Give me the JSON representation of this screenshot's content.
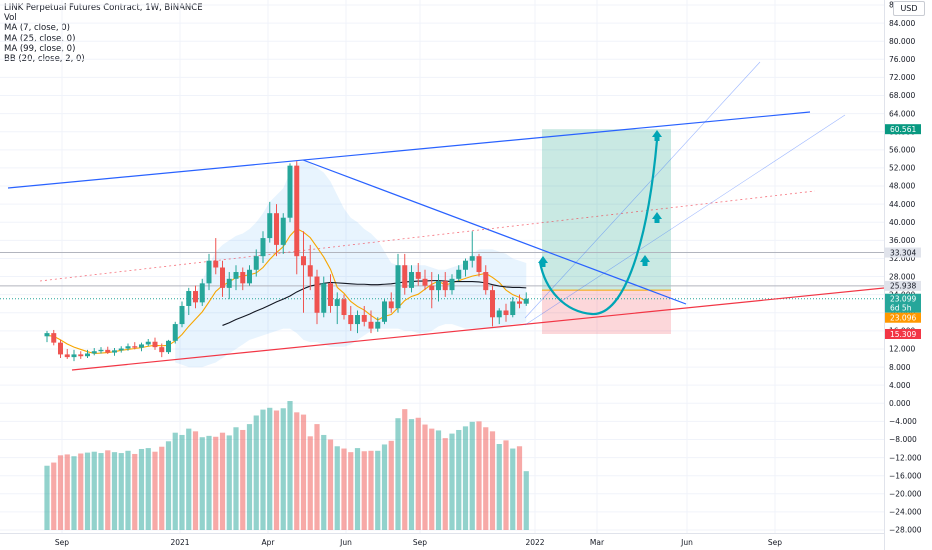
{
  "legend": {
    "title": "LINK Perpetual Futures Contract, 1W, BINANCE",
    "vol": "Vol",
    "ma7": "MA (7, close, 0)",
    "ma25": "MA (25, close, 0)",
    "ma99": "MA (99, close, 0)",
    "bb": "BB (20, close, 2, 0)"
  },
  "currency_button": "USD",
  "chart_data": {
    "type": "candlestick",
    "title": "LINK Perpetual Futures Contract, 1W, BINANCE",
    "price_axis_ticks": [
      "88.000",
      "84.000",
      "80.000",
      "76.000",
      "72.000",
      "68.000",
      "64.000",
      "60.000",
      "56.000",
      "52.000",
      "48.000",
      "44.000",
      "40.000",
      "36.000",
      "32.000",
      "28.000",
      "24.000",
      "20.000",
      "16.000",
      "12.000",
      "8.000",
      "4.000",
      "0.000",
      "−4.000",
      "−8.000",
      "−12.000",
      "−16.000",
      "−20.000",
      "−24.000",
      "−28.000"
    ],
    "time_axis_ticks": [
      "Sep",
      "2021",
      "Apr",
      "Jun",
      "Sep",
      "2022",
      "Mar",
      "Jun",
      "Sep"
    ],
    "price_labels": [
      {
        "text": "60.561",
        "color": "#089981",
        "text_color": "#ffffff"
      },
      {
        "text": "33.304",
        "color": "#e0e3eb",
        "text_color": "#131722"
      },
      {
        "text": "25.938",
        "color": "#e0e3eb",
        "text_color": "#131722"
      },
      {
        "text": "23.099",
        "color": "#26a69a",
        "text_color": "#ffffff"
      },
      {
        "text": "6d 5h",
        "color": "#26a69a",
        "text_color": "#ffffff"
      },
      {
        "text": "23.096",
        "color": "#ff9800",
        "text_color": "#ffffff"
      },
      {
        "text": "15.309",
        "color": "#f23645",
        "text_color": "#ffffff"
      }
    ],
    "candles": [
      {
        "o": 14.8,
        "h": 16.0,
        "l": 13.5,
        "c": 15.5
      },
      {
        "o": 15.5,
        "h": 16.2,
        "l": 12.8,
        "c": 13.4
      },
      {
        "o": 13.4,
        "h": 14.0,
        "l": 10.0,
        "c": 10.8
      },
      {
        "o": 10.8,
        "h": 12.0,
        "l": 9.8,
        "c": 10.2
      },
      {
        "o": 10.2,
        "h": 11.8,
        "l": 9.3,
        "c": 10.8
      },
      {
        "o": 10.8,
        "h": 11.5,
        "l": 9.8,
        "c": 10.4
      },
      {
        "o": 10.4,
        "h": 11.8,
        "l": 10.0,
        "c": 11.0
      },
      {
        "o": 11.0,
        "h": 12.2,
        "l": 10.6,
        "c": 11.5
      },
      {
        "o": 11.5,
        "h": 12.4,
        "l": 11.0,
        "c": 11.8
      },
      {
        "o": 11.8,
        "h": 12.5,
        "l": 10.9,
        "c": 11.2
      },
      {
        "o": 11.2,
        "h": 12.2,
        "l": 10.5,
        "c": 11.7
      },
      {
        "o": 11.7,
        "h": 12.6,
        "l": 11.2,
        "c": 12.1
      },
      {
        "o": 12.1,
        "h": 13.2,
        "l": 11.6,
        "c": 12.6
      },
      {
        "o": 12.6,
        "h": 13.5,
        "l": 11.9,
        "c": 12.3
      },
      {
        "o": 12.3,
        "h": 13.4,
        "l": 11.5,
        "c": 13.0
      },
      {
        "o": 13.0,
        "h": 14.2,
        "l": 12.6,
        "c": 13.6
      },
      {
        "o": 13.6,
        "h": 14.5,
        "l": 11.8,
        "c": 12.4
      },
      {
        "o": 12.4,
        "h": 13.2,
        "l": 10.2,
        "c": 11.3
      },
      {
        "o": 11.3,
        "h": 14.0,
        "l": 10.9,
        "c": 13.8
      },
      {
        "o": 13.8,
        "h": 18.0,
        "l": 13.2,
        "c": 17.5
      },
      {
        "o": 17.5,
        "h": 22.5,
        "l": 16.8,
        "c": 21.5
      },
      {
        "o": 21.5,
        "h": 25.5,
        "l": 19.5,
        "c": 24.8
      },
      {
        "o": 24.8,
        "h": 26.0,
        "l": 21.0,
        "c": 22.3
      },
      {
        "o": 22.3,
        "h": 27.5,
        "l": 21.5,
        "c": 26.5
      },
      {
        "o": 26.5,
        "h": 33.0,
        "l": 25.0,
        "c": 31.5
      },
      {
        "o": 31.5,
        "h": 36.5,
        "l": 28.5,
        "c": 30.0
      },
      {
        "o": 30.0,
        "h": 31.5,
        "l": 23.5,
        "c": 25.5
      },
      {
        "o": 25.5,
        "h": 29.0,
        "l": 23.0,
        "c": 27.5
      },
      {
        "o": 27.5,
        "h": 30.5,
        "l": 25.0,
        "c": 29.0
      },
      {
        "o": 29.0,
        "h": 30.0,
        "l": 25.0,
        "c": 26.5
      },
      {
        "o": 26.5,
        "h": 30.5,
        "l": 26.0,
        "c": 29.5
      },
      {
        "o": 29.5,
        "h": 34.0,
        "l": 28.0,
        "c": 32.5
      },
      {
        "o": 32.5,
        "h": 38.0,
        "l": 31.0,
        "c": 36.5
      },
      {
        "o": 36.5,
        "h": 44.5,
        "l": 35.5,
        "c": 42.0
      },
      {
        "o": 42.0,
        "h": 44.0,
        "l": 32.5,
        "c": 35.0
      },
      {
        "o": 35.0,
        "h": 42.0,
        "l": 33.0,
        "c": 41.0
      },
      {
        "o": 41.0,
        "h": 53.0,
        "l": 40.0,
        "c": 52.5
      },
      {
        "o": 52.5,
        "h": 53.5,
        "l": 28.5,
        "c": 32.5
      },
      {
        "o": 32.5,
        "h": 38.0,
        "l": 20.0,
        "c": 30.5
      },
      {
        "o": 30.5,
        "h": 35.0,
        "l": 25.0,
        "c": 28.0
      },
      {
        "o": 28.0,
        "h": 29.5,
        "l": 17.5,
        "c": 20.0
      },
      {
        "o": 20.0,
        "h": 28.0,
        "l": 19.0,
        "c": 26.5
      },
      {
        "o": 26.5,
        "h": 28.5,
        "l": 20.0,
        "c": 21.5
      },
      {
        "o": 21.5,
        "h": 24.5,
        "l": 17.5,
        "c": 23.0
      },
      {
        "o": 23.0,
        "h": 24.0,
        "l": 18.5,
        "c": 19.5
      },
      {
        "o": 19.5,
        "h": 21.5,
        "l": 16.0,
        "c": 17.5
      },
      {
        "o": 17.5,
        "h": 20.5,
        "l": 15.5,
        "c": 19.5
      },
      {
        "o": 19.5,
        "h": 21.5,
        "l": 17.0,
        "c": 18.0
      },
      {
        "o": 18.0,
        "h": 20.5,
        "l": 15.5,
        "c": 16.5
      },
      {
        "o": 16.5,
        "h": 19.0,
        "l": 15.8,
        "c": 18.0
      },
      {
        "o": 18.0,
        "h": 23.0,
        "l": 17.5,
        "c": 22.5
      },
      {
        "o": 22.5,
        "h": 24.5,
        "l": 20.0,
        "c": 21.0
      },
      {
        "o": 21.0,
        "h": 33.0,
        "l": 20.0,
        "c": 30.5
      },
      {
        "o": 30.5,
        "h": 33.0,
        "l": 24.0,
        "c": 25.5
      },
      {
        "o": 25.5,
        "h": 30.5,
        "l": 24.5,
        "c": 29.0
      },
      {
        "o": 29.0,
        "h": 31.0,
        "l": 26.0,
        "c": 27.5
      },
      {
        "o": 27.5,
        "h": 29.5,
        "l": 25.0,
        "c": 26.0
      },
      {
        "o": 26.0,
        "h": 29.0,
        "l": 21.0,
        "c": 25.0
      },
      {
        "o": 25.0,
        "h": 28.5,
        "l": 22.5,
        "c": 27.0
      },
      {
        "o": 27.0,
        "h": 29.0,
        "l": 23.5,
        "c": 25.0
      },
      {
        "o": 25.0,
        "h": 28.5,
        "l": 24.0,
        "c": 27.5
      },
      {
        "o": 27.5,
        "h": 30.5,
        "l": 27.0,
        "c": 29.5
      },
      {
        "o": 29.5,
        "h": 32.0,
        "l": 28.0,
        "c": 31.5
      },
      {
        "o": 31.5,
        "h": 38.0,
        "l": 30.0,
        "c": 32.5
      },
      {
        "o": 32.5,
        "h": 33.0,
        "l": 28.0,
        "c": 29.0
      },
      {
        "o": 29.0,
        "h": 30.5,
        "l": 24.0,
        "c": 25.0
      },
      {
        "o": 25.0,
        "h": 26.0,
        "l": 17.0,
        "c": 19.0
      },
      {
        "o": 19.0,
        "h": 21.0,
        "l": 17.5,
        "c": 20.5
      },
      {
        "o": 20.5,
        "h": 22.0,
        "l": 18.0,
        "c": 19.5
      },
      {
        "o": 19.5,
        "h": 23.5,
        "l": 19.0,
        "c": 22.5
      },
      {
        "o": 22.5,
        "h": 24.0,
        "l": 21.0,
        "c": 22.0
      },
      {
        "o": 22.0,
        "h": 24.5,
        "l": 21.5,
        "c": 23.1
      }
    ],
    "volume": [
      14.2,
      14.9,
      16.5,
      16.7,
      16.3,
      16.9,
      17.1,
      17.3,
      17.0,
      17.6,
      17.2,
      17.0,
      17.5,
      16.8,
      17.9,
      18.1,
      17.3,
      18.4,
      19.6,
      21.5,
      21.0,
      22.4,
      21.8,
      20.5,
      20.8,
      20.6,
      21.5,
      20.9,
      22.7,
      22.1,
      23.4,
      25.3,
      26.6,
      27.0,
      26.4,
      26.9,
      28.5,
      26.0,
      25.5,
      20.7,
      23.4,
      21.0,
      20.0,
      18.5,
      18.0,
      17.2,
      18.1,
      17.4,
      17.5,
      17.5,
      18.9,
      19.7,
      24.7,
      26.7,
      24.5,
      24.8,
      23.3,
      22.4,
      22.0,
      20.3,
      21.3,
      22.1,
      22.9,
      23.9,
      24.0,
      22.7,
      21.8,
      19.0,
      19.8,
      18.0,
      18.5,
      13.0
    ],
    "ma7": [
      15.0,
      14.8,
      14.0,
      13.1,
      12.4,
      11.9,
      11.4,
      11.0,
      11.1,
      11.2,
      11.4,
      11.7,
      11.9,
      12.1,
      12.3,
      12.6,
      12.8,
      12.7,
      12.8,
      13.8,
      15.2,
      17.0,
      18.6,
      20.2,
      22.4,
      24.7,
      26.0,
      26.8,
      27.8,
      28.1,
      28.4,
      28.8,
      30.0,
      31.8,
      33.3,
      34.6,
      37.0,
      38.6,
      37.8,
      36.6,
      34.5,
      32.3,
      29.6,
      25.6,
      24.3,
      22.5,
      21.4,
      20.6,
      19.4,
      18.4,
      19.2,
      19.6,
      21.1,
      22.7,
      23.6,
      24.1,
      25.2,
      26.3,
      27.0,
      26.1,
      26.6,
      27.1,
      27.6,
      28.1,
      28.4,
      28.7,
      27.8,
      26.7,
      25.0,
      24.0,
      23.4,
      22.5
    ],
    "ma25": [
      null,
      null,
      null,
      null,
      null,
      null,
      null,
      null,
      null,
      null,
      null,
      null,
      null,
      null,
      null,
      null,
      null,
      null,
      null,
      null,
      null,
      null,
      null,
      null,
      14.8,
      15.5,
      16.1,
      16.8,
      17.6,
      18.2,
      19.0,
      19.8,
      20.8,
      22.0,
      23.1,
      24.3,
      25.9,
      26.8,
      27.5,
      28.0,
      28.2,
      28.5,
      28.4,
      28.2,
      27.8,
      27.1,
      26.5,
      25.9,
      25.2,
      24.5,
      24.0,
      23.5,
      23.3,
      23.1,
      22.9,
      22.9,
      23.0,
      23.1,
      23.4,
      23.7,
      24.1,
      24.5,
      25.0,
      25.4,
      25.6,
      25.7,
      25.5,
      25.2,
      24.9,
      24.8,
      24.7,
      24.6
    ],
    "ma99_note": "MA(99) shown from week 26 onward, rising from ~17 to ~27",
    "ma99": [
      null,
      null,
      null,
      null,
      null,
      null,
      null,
      null,
      null,
      null,
      null,
      null,
      null,
      null,
      null,
      null,
      null,
      null,
      null,
      null,
      null,
      null,
      null,
      null,
      null,
      null,
      17.2,
      17.8,
      18.5,
      19.1,
      19.7,
      20.4,
      21.0,
      21.7,
      22.4,
      23.0,
      23.7,
      24.6,
      25.3,
      25.9,
      26.2,
      26.5,
      26.7,
      26.6,
      26.5,
      26.4,
      26.3,
      26.3,
      26.2,
      26.2,
      26.3,
      26.4,
      26.6,
      26.8,
      26.9,
      27.0,
      27.0,
      27.1,
      27.1,
      27.0,
      26.9,
      26.9,
      26.9,
      26.9,
      26.8,
      26.6,
      26.2,
      25.9,
      25.7,
      25.6,
      25.6,
      25.5
    ],
    "bb_upper": [
      null,
      null,
      null,
      null,
      null,
      null,
      null,
      null,
      null,
      null,
      null,
      null,
      null,
      null,
      null,
      null,
      null,
      null,
      null,
      16.5,
      19.0,
      22.0,
      24.5,
      27.0,
      30.5,
      33.5,
      35.0,
      36.0,
      37.0,
      37.5,
      38.5,
      40.0,
      42.0,
      44.5,
      46.0,
      47.5,
      51.0,
      53.0,
      53.5,
      53.0,
      52.0,
      51.0,
      49.0,
      46.0,
      43.0,
      41.0,
      40.0,
      38.5,
      37.5,
      36.0,
      33.5,
      31.0,
      30.5,
      30.5,
      30.5,
      30.5,
      30.5,
      30.0,
      29.5,
      29.5,
      30.0,
      30.5,
      31.0,
      33.0,
      34.0,
      34.0,
      34.0,
      33.5,
      33.0,
      32.0,
      31.5,
      31.0
    ],
    "bb_lower": [
      null,
      null,
      null,
      null,
      null,
      null,
      null,
      null,
      null,
      null,
      null,
      null,
      null,
      null,
      null,
      null,
      null,
      null,
      null,
      9.0,
      8.5,
      8.0,
      8.0,
      8.0,
      8.5,
      9.0,
      10.0,
      11.0,
      12.0,
      13.0,
      14.0,
      14.5,
      15.0,
      15.5,
      16.0,
      16.5,
      16.5,
      15.5,
      14.0,
      13.5,
      13.5,
      13.0,
      12.5,
      12.5,
      12.5,
      13.0,
      14.0,
      15.0,
      16.0,
      16.5,
      16.5,
      16.5,
      16.5,
      16.0,
      16.0,
      15.5,
      15.5,
      16.0,
      17.0,
      17.5,
      17.5,
      17.0,
      16.5,
      16.5,
      16.5,
      16.5,
      16.5,
      16.5,
      17.0,
      17.5,
      17.5,
      18.0
    ]
  }
}
